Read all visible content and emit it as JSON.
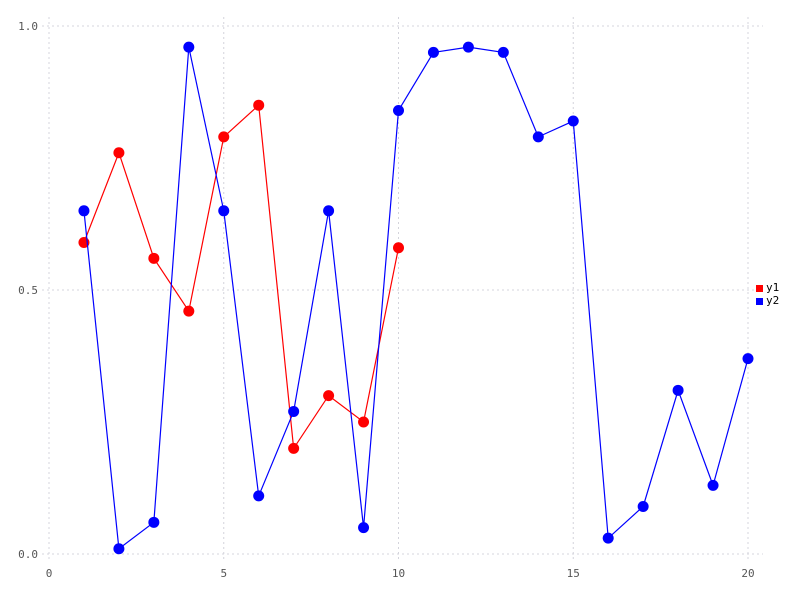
{
  "chart_data": {
    "type": "line",
    "title": "",
    "xlabel": "",
    "ylabel": "",
    "xlim": [
      0,
      20
    ],
    "ylim": [
      0,
      1
    ],
    "x_ticks": [
      0,
      5,
      10,
      15,
      20
    ],
    "y_ticks": [
      0.0,
      0.5,
      1.0
    ],
    "y_tick_labels": [
      "0.0",
      "0.5",
      "1.0"
    ],
    "grid": "dotted",
    "legend_position": "right-outside",
    "series": [
      {
        "name": "y1",
        "color": "#ff0000",
        "x": [
          1,
          2,
          3,
          4,
          5,
          6,
          7,
          8,
          9,
          10
        ],
        "values": [
          0.59,
          0.76,
          0.56,
          0.46,
          0.79,
          0.85,
          0.2,
          0.3,
          0.25,
          0.58
        ]
      },
      {
        "name": "y2",
        "color": "#0000ff",
        "x": [
          1,
          2,
          3,
          4,
          5,
          6,
          7,
          8,
          9,
          10,
          11,
          12,
          13,
          14,
          15,
          16,
          17,
          18,
          19,
          20
        ],
        "values": [
          0.65,
          0.01,
          0.06,
          0.96,
          0.65,
          0.11,
          0.27,
          0.65,
          0.05,
          0.84,
          0.95,
          0.96,
          0.95,
          0.79,
          0.82,
          0.03,
          0.09,
          0.31,
          0.13,
          0.37
        ]
      }
    ],
    "colors": {
      "grid": "#d4d4dc",
      "tick_text": "#555555",
      "legend_text": "#000000",
      "background": "#ffffff"
    }
  }
}
